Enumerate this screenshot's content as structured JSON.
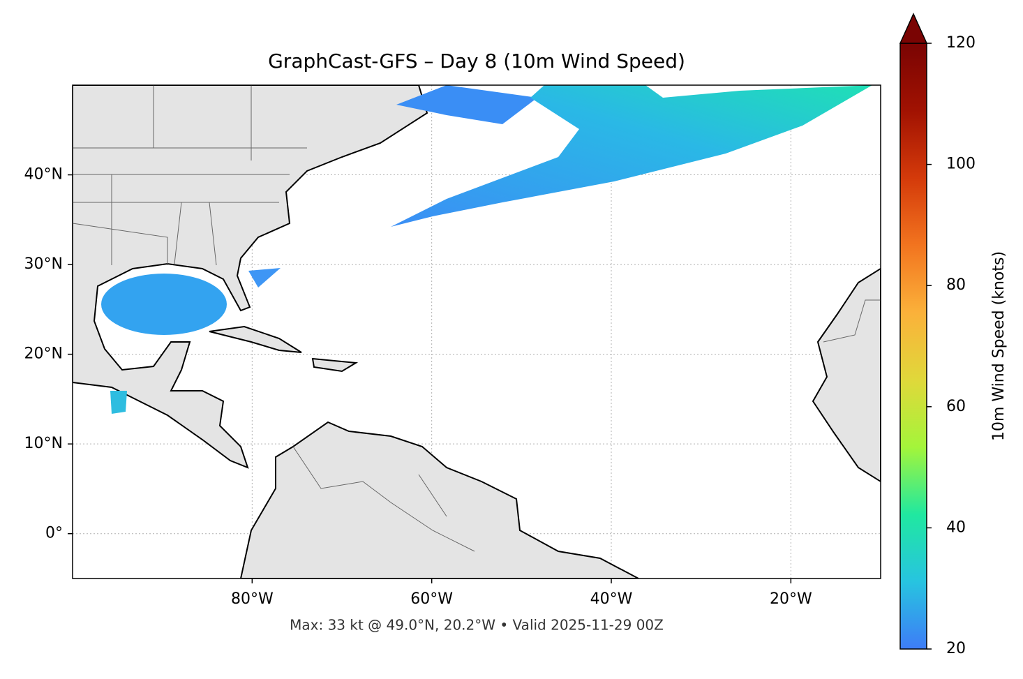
{
  "chart_data": {
    "type": "map",
    "title": "GraphCast-GFS – Day 8 (10m Wind Speed)",
    "footer": "Max: 33 kt @ 49.0°N, 20.2°W • Valid 2025-11-29 00Z",
    "xlim": [
      -100,
      -10
    ],
    "ylim": [
      -5,
      50
    ],
    "xticks": [
      {
        "value": -80,
        "label": "80°W"
      },
      {
        "value": -60,
        "label": "60°W"
      },
      {
        "value": -40,
        "label": "40°W"
      },
      {
        "value": -20,
        "label": "20°W"
      }
    ],
    "yticks": [
      {
        "value": 0,
        "label": "0°"
      },
      {
        "value": 10,
        "label": "10°N"
      },
      {
        "value": 20,
        "label": "20°N"
      },
      {
        "value": 30,
        "label": "30°N"
      },
      {
        "value": 40,
        "label": "40°N"
      }
    ],
    "grid": true,
    "colorbar": {
      "label": "10m Wind Speed (knots)",
      "lim": [
        20,
        120
      ],
      "ticks": [
        20,
        40,
        60,
        80,
        100,
        120
      ],
      "colors": [
        "#3e7cf7",
        "#27c4e0",
        "#20e8a0",
        "#a4f53a",
        "#e0d83a",
        "#fbb13a",
        "#f2741f",
        "#d43a0a",
        "#a11202",
        "#7a0403"
      ],
      "extend": "max"
    }
  }
}
